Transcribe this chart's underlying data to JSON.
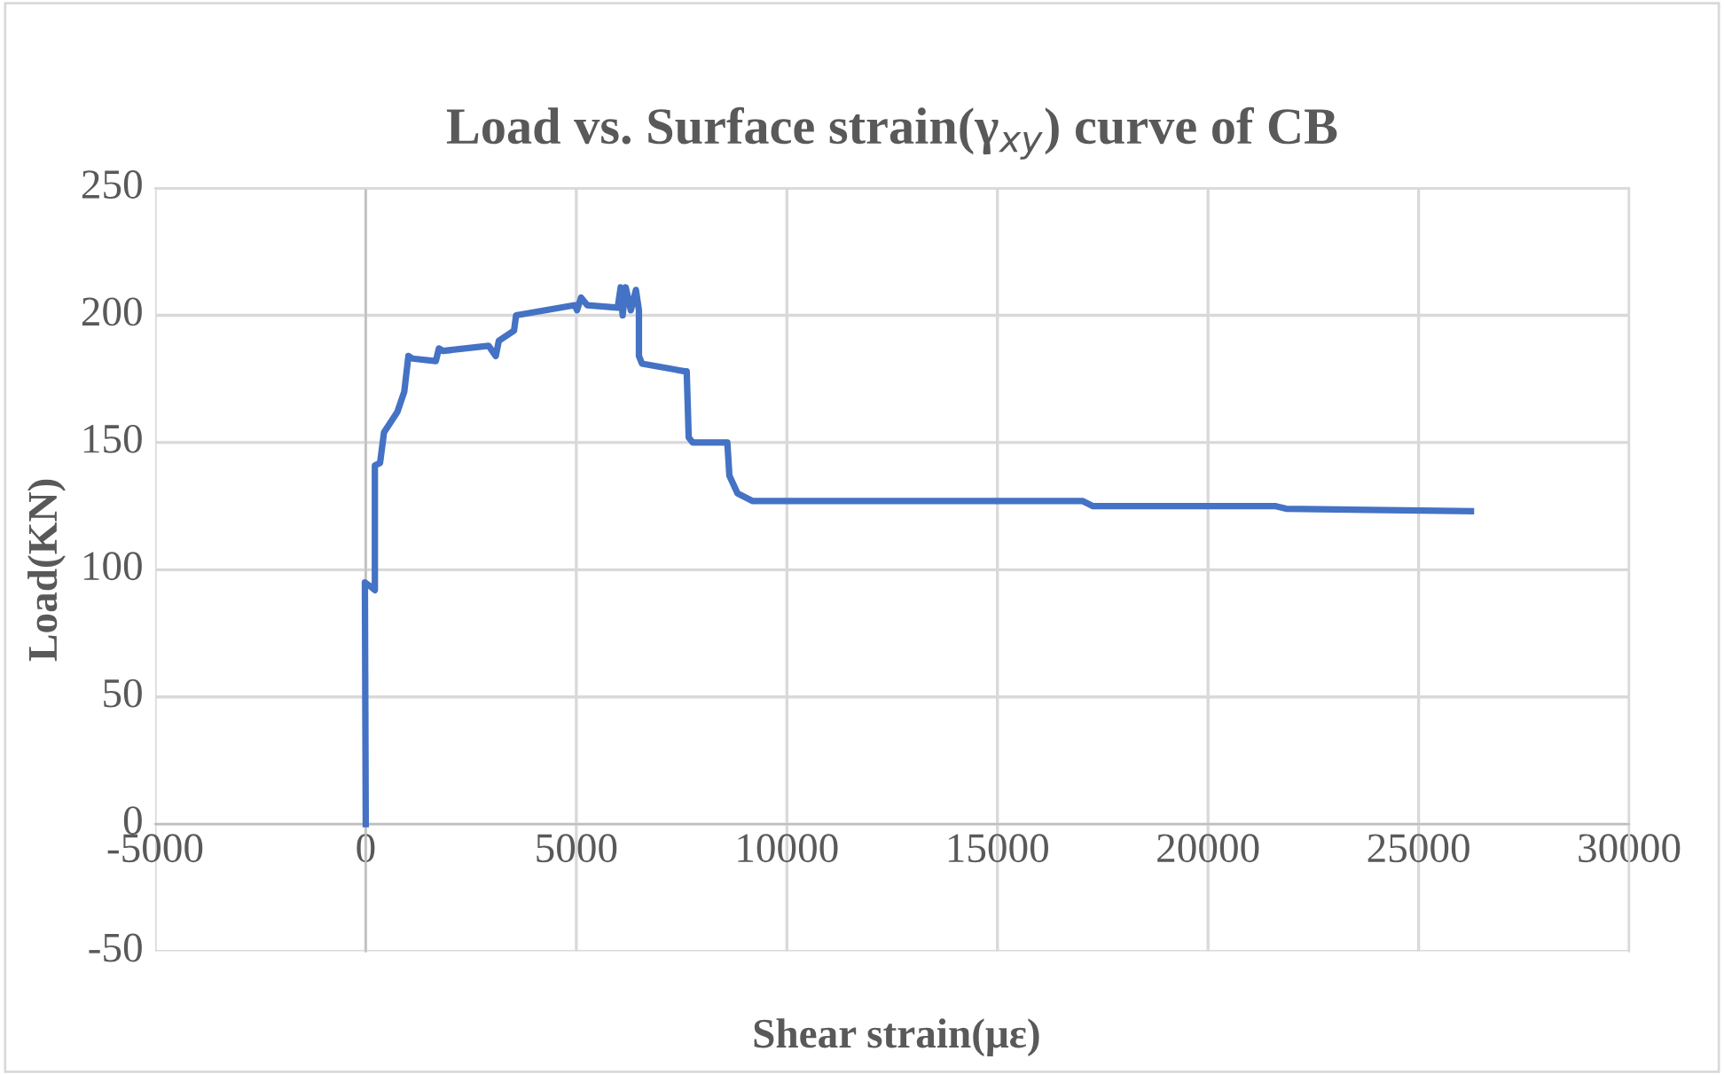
{
  "chart_data": {
    "type": "line",
    "title": "Load vs. Surface strain(γ$_{xy}$) curve of CB",
    "xlabel": "Shear strain(με)",
    "ylabel": "Load(KN)",
    "xlim": [
      -5000,
      30000
    ],
    "xticks": [
      -5000,
      0,
      5000,
      10000,
      15000,
      20000,
      25000,
      30000
    ],
    "ylim": [
      -50,
      250
    ],
    "yticks": [
      -50,
      0,
      50,
      100,
      150,
      200,
      250
    ],
    "grid": true,
    "marker": "none",
    "line_style": "solid",
    "series": [
      {
        "color": "#4472c4",
        "x": [
          0,
          -20,
          145,
          217,
          217,
          340,
          434,
          750,
          915,
          1013,
          1110,
          1664,
          1737,
          1833,
          2918,
          3087,
          3160,
          3521,
          3570,
          4968,
          5016,
          5113,
          5258,
          5981,
          6053,
          6100,
          6174,
          6294,
          6415,
          6487,
          6487,
          6560,
          7573,
          7621,
          7669,
          7766,
          8586,
          8635,
          8828,
          9190,
          17029,
          17270,
          21612,
          21853,
          26243
        ],
        "values": [
          0,
          95,
          93,
          92,
          141,
          142,
          154,
          162,
          170,
          184,
          183,
          182,
          187,
          186,
          188,
          184,
          190,
          194,
          200,
          204,
          202,
          207,
          204,
          203,
          211,
          200,
          211,
          202,
          210,
          202,
          184,
          181,
          178,
          178,
          152,
          150,
          150,
          137,
          130,
          127,
          127,
          125,
          125,
          124,
          123
        ]
      }
    ]
  }
}
